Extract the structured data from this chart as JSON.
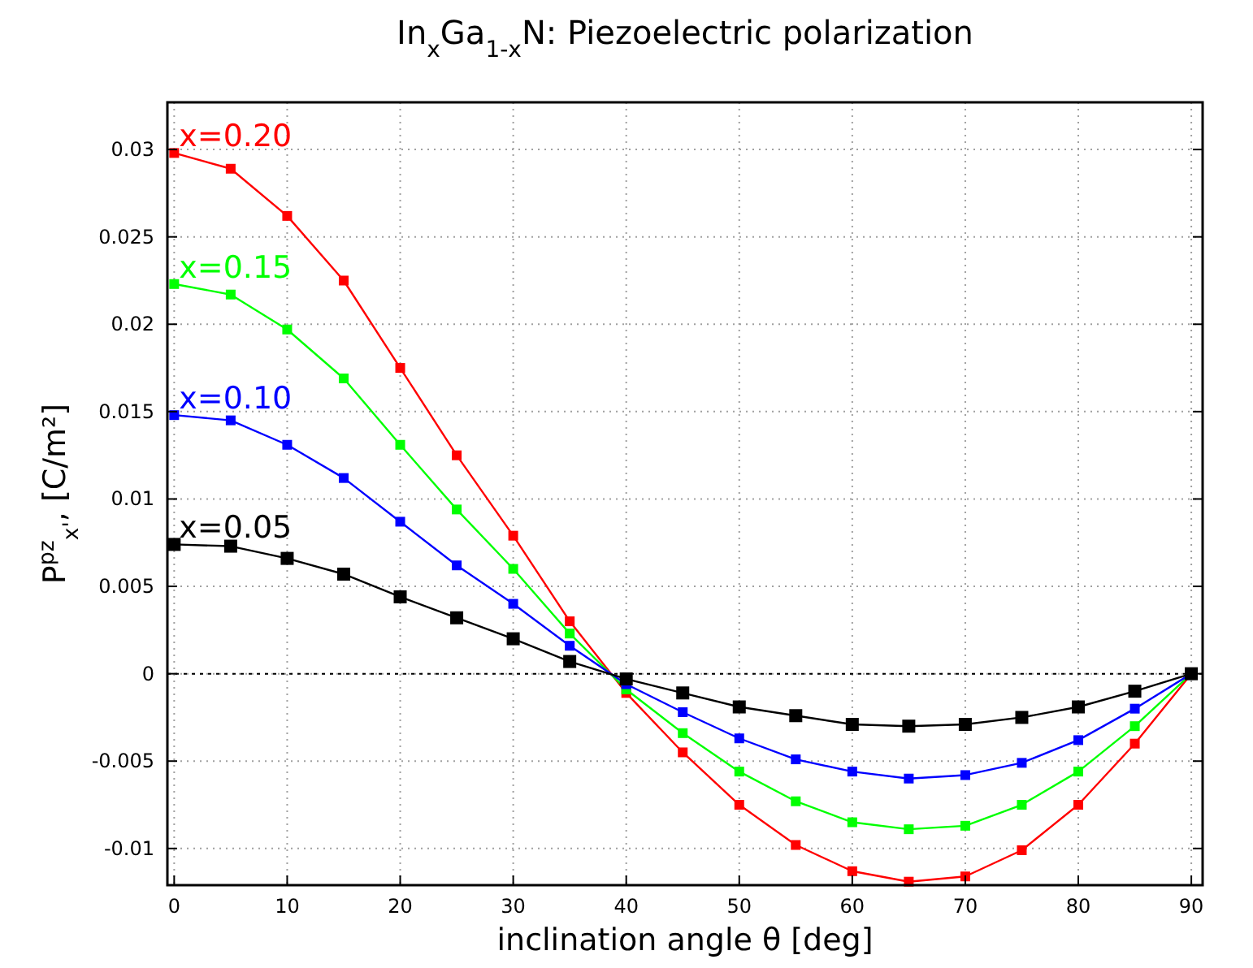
{
  "chart_data": {
    "type": "line",
    "title": "In$_{x}$Ga$_{1-x}$N: Piezoelectric polarization",
    "xlabel": "inclination angle θ [deg]",
    "ylabel": "P$^{pz}$$_{x'}$, [C/m²]",
    "x": [
      0,
      5,
      10,
      15,
      20,
      25,
      30,
      35,
      40,
      45,
      50,
      55,
      60,
      65,
      70,
      75,
      80,
      85,
      90
    ],
    "series": [
      {
        "name": "x=0.20",
        "color": "#ff0000",
        "values": [
          0.0298,
          0.0289,
          0.0262,
          0.0225,
          0.0175,
          0.0125,
          0.0079,
          0.003,
          -0.0011,
          -0.0045,
          -0.0075,
          -0.0098,
          -0.0113,
          -0.0119,
          -0.0116,
          -0.0101,
          -0.0075,
          -0.004,
          0
        ]
      },
      {
        "name": "x=0.15",
        "color": "#00ff00",
        "values": [
          0.0223,
          0.0217,
          0.0197,
          0.0169,
          0.0131,
          0.0094,
          0.006,
          0.0023,
          -0.0009,
          -0.0034,
          -0.0056,
          -0.0073,
          -0.0085,
          -0.0089,
          -0.0087,
          -0.0075,
          -0.0056,
          -0.003,
          0
        ]
      },
      {
        "name": "x=0.10",
        "color": "#0000ff",
        "values": [
          0.0148,
          0.0145,
          0.0131,
          0.0112,
          0.0087,
          0.0062,
          0.004,
          0.0016,
          -0.0006,
          -0.0022,
          -0.0037,
          -0.0049,
          -0.0056,
          -0.006,
          -0.0058,
          -0.0051,
          -0.0038,
          -0.002,
          0
        ]
      },
      {
        "name": "x=0.05",
        "color": "#000000",
        "values": [
          0.0074,
          0.0073,
          0.0066,
          0.0057,
          0.0044,
          0.0032,
          0.002,
          0.0007,
          -0.0003,
          -0.0011,
          -0.0019,
          -0.0024,
          -0.0029,
          -0.003,
          -0.0029,
          -0.0025,
          -0.0019,
          -0.001,
          0
        ]
      }
    ],
    "xlim": [
      -0.6,
      91
    ],
    "xticks": [
      0,
      10,
      20,
      30,
      40,
      50,
      60,
      70,
      80,
      90
    ],
    "ylim": [
      -0.0121,
      0.0327
    ],
    "yticks": [
      -0.01,
      -0.005,
      0,
      0.005,
      0.01,
      0.015,
      0.02,
      0.025,
      0.03
    ],
    "grid": true,
    "marker": "square",
    "line_style": "solid",
    "ref_lines": [
      {
        "axis": "y",
        "value": 0,
        "color": "#000000",
        "line_style": "dotted"
      }
    ]
  }
}
